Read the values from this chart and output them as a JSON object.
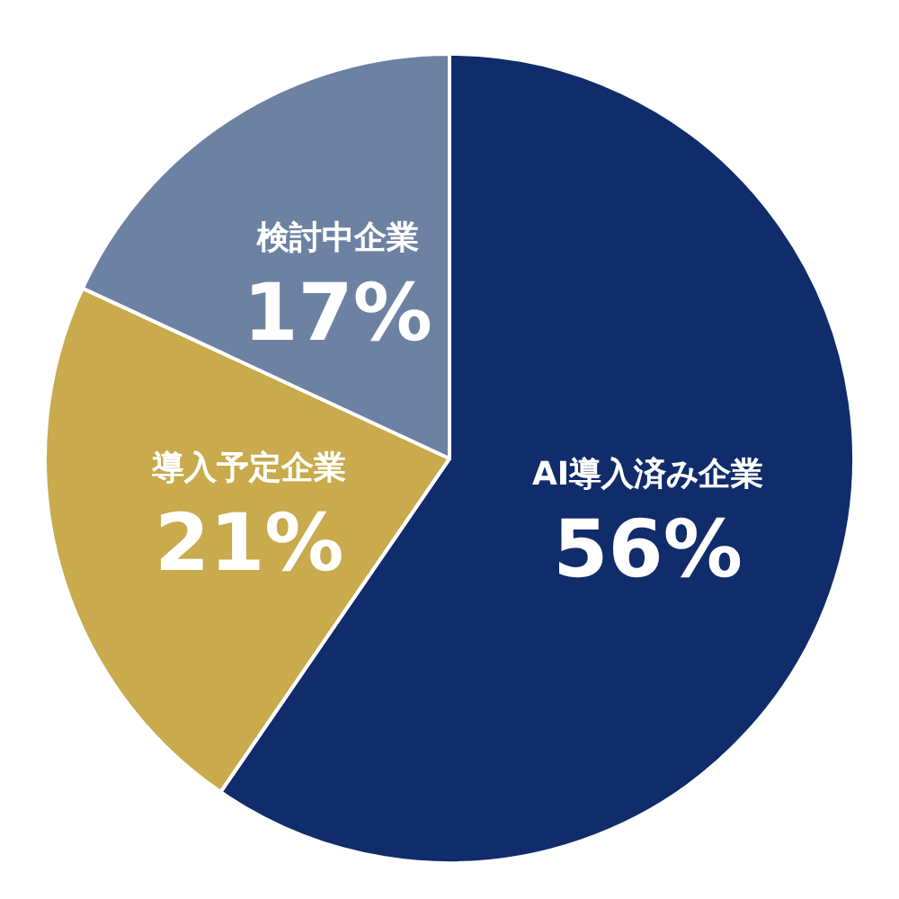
{
  "chart_data": {
    "type": "pie",
    "categories": [
      "AI導入済み企業",
      "導入予定企業",
      "検討中企業"
    ],
    "values": [
      56,
      21,
      17
    ],
    "value_labels": [
      "56%",
      "21%",
      "17%"
    ],
    "colors": [
      "#102c6b",
      "#c9aa4c",
      "#6d82a3"
    ],
    "legend": false
  }
}
